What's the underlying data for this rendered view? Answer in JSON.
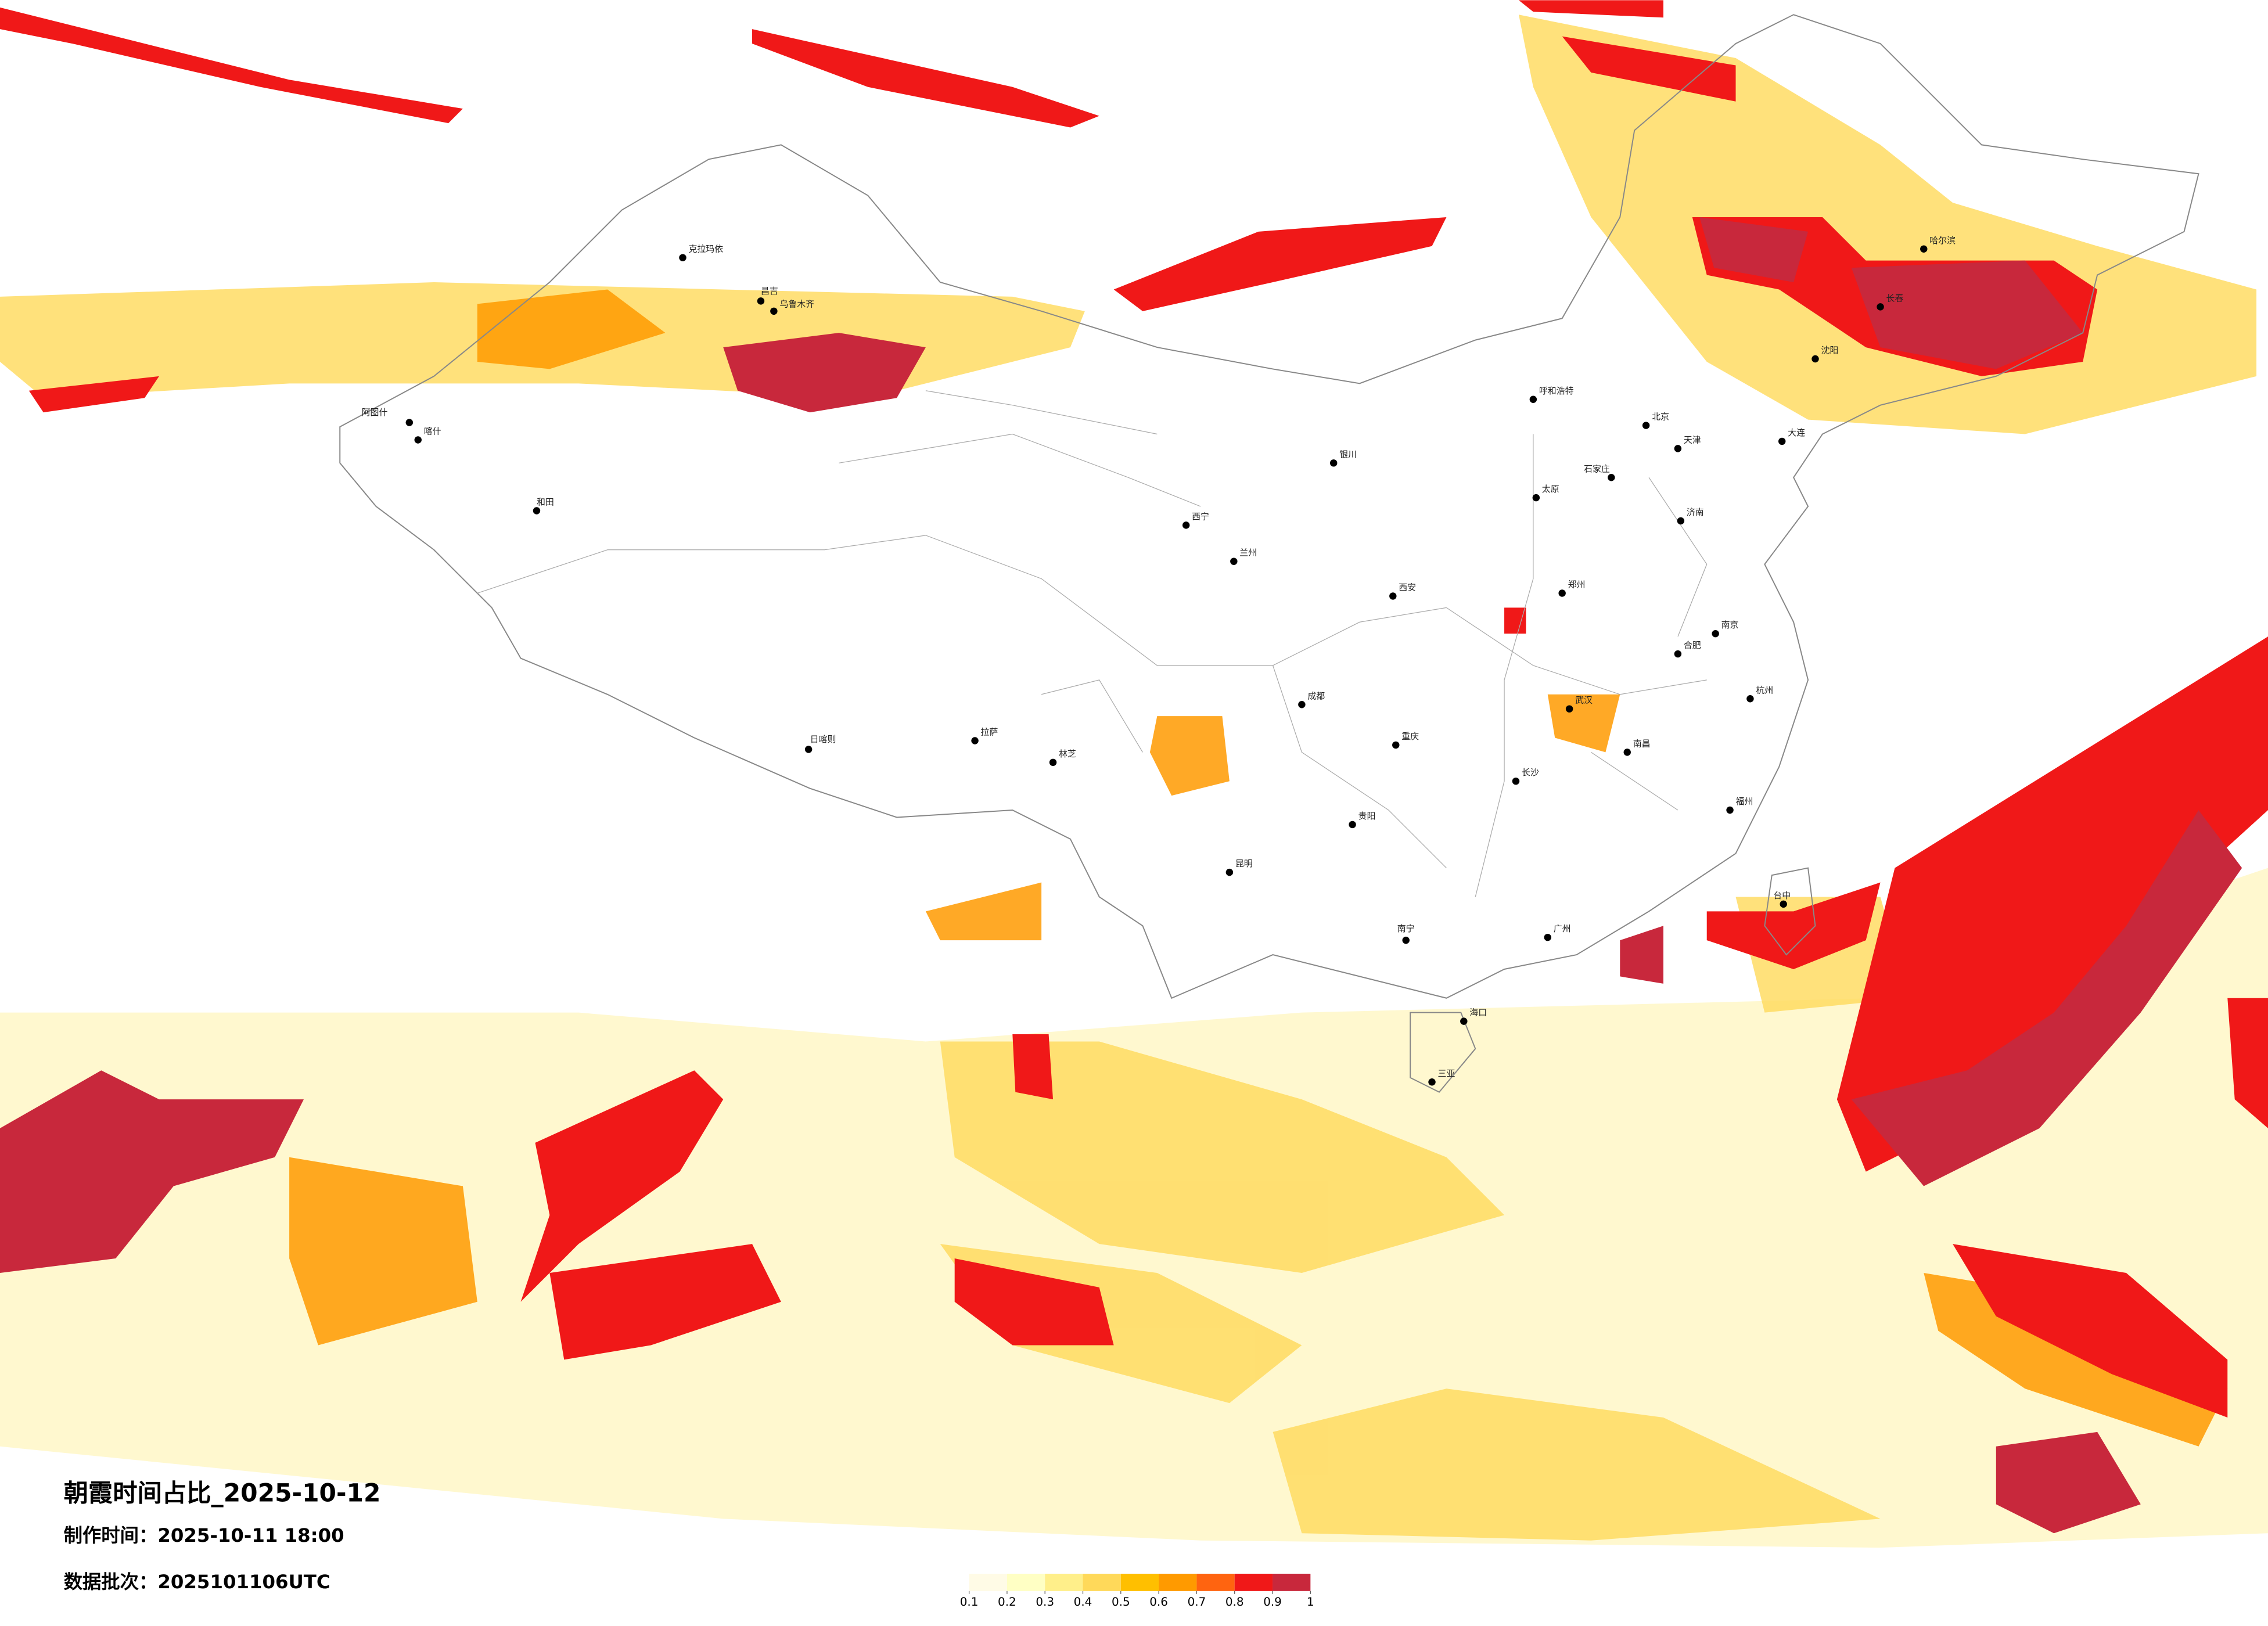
{
  "header": {
    "title": "朝霞时间占比_2025-10-12",
    "made_time": "制作时间：2025-10-11 18:00",
    "batch": "数据批次：2025101106UTC"
  },
  "legend": {
    "ticks": [
      0.1,
      0.2,
      0.3,
      0.4,
      0.5,
      0.6,
      0.7,
      0.8,
      0.9,
      1
    ],
    "colors": [
      "#fffbe6",
      "#ffffc4",
      "#ffef8a",
      "#ffd95a",
      "#ffbf00",
      "#ff9a00",
      "#ff6410",
      "#f01818",
      "#c8283c"
    ]
  },
  "cities": [
    "克拉玛依",
    "乌鲁木齐",
    "昌吉",
    "喀什",
    "和田",
    "阿图什",
    "拉萨",
    "日喀则",
    "林芝",
    "西宁",
    "兰州",
    "银川",
    "呼和浩特",
    "北京",
    "天津",
    "石家庄",
    "太原",
    "济南",
    "郑州",
    "西安",
    "成都",
    "重庆",
    "贵阳",
    "昆明",
    "南宁",
    "广州",
    "海口",
    "三亚",
    "长沙",
    "武汉",
    "南昌",
    "合肥",
    "南京",
    "杭州",
    "福州",
    "台中",
    "沈阳",
    "长春",
    "哈尔滨",
    "大连"
  ]
}
